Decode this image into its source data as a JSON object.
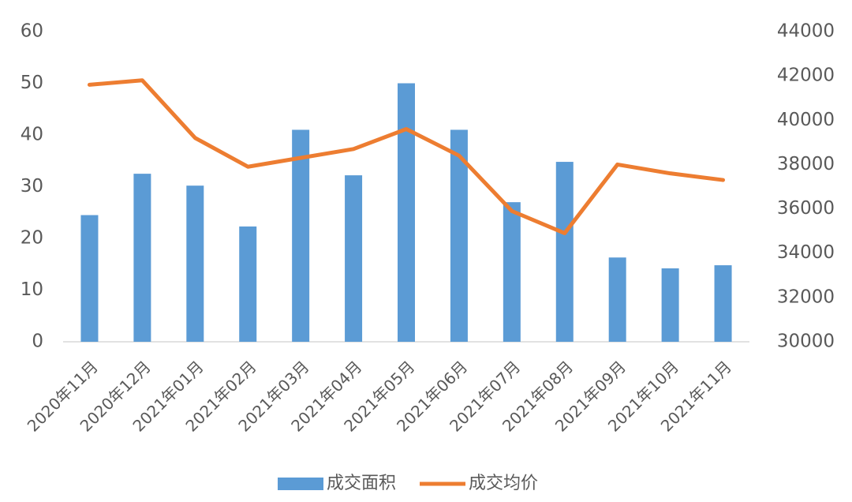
{
  "chart_data": {
    "type": "bar-line",
    "categories": [
      "2020年11月",
      "2020年12月",
      "2021年01月",
      "2021年02月",
      "2021年03月",
      "2021年04月",
      "2021年05月",
      "2021年06月",
      "2021年07月",
      "2021年08月",
      "2021年09月",
      "2021年10月",
      "2021年11月"
    ],
    "series": [
      {
        "name": "成交面积",
        "type": "bar",
        "color": "#5b9bd5",
        "values": [
          24.5,
          32.5,
          30.2,
          22.3,
          41,
          32.2,
          50,
          41,
          27,
          34.8,
          16.3,
          14.2,
          14.8
        ]
      },
      {
        "name": "成交均价",
        "type": "line",
        "color": "#ed7d31",
        "axis": "y2",
        "values": [
          41600,
          41800,
          39200,
          37900,
          38300,
          38700,
          39600,
          38400,
          35900,
          34900,
          38000,
          37600,
          37300
        ]
      }
    ],
    "ylim": [
      0,
      60
    ],
    "yticks": [
      0,
      10,
      20,
      30,
      40,
      50,
      60
    ],
    "y2lim": [
      30000,
      44000
    ],
    "y2ticks": [
      30000,
      32000,
      34000,
      36000,
      38000,
      40000,
      42000,
      44000
    ],
    "legend": "bottom"
  }
}
